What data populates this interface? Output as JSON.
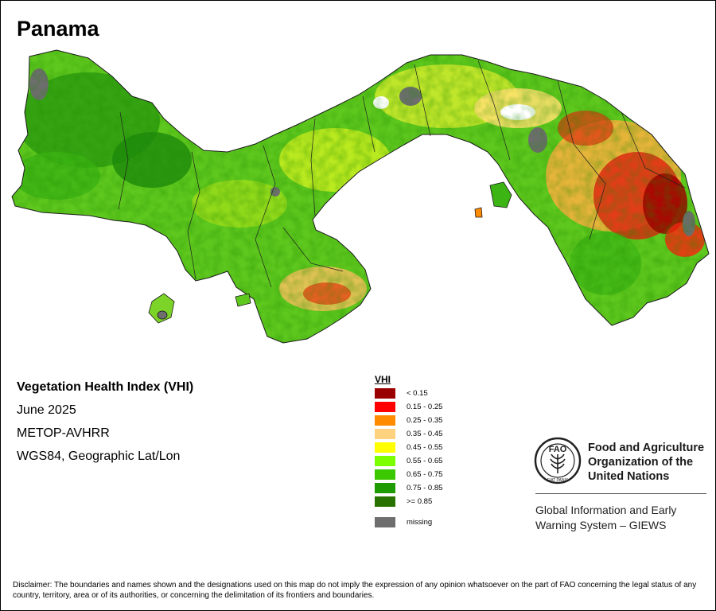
{
  "map": {
    "title": "Panama",
    "colors": {
      "land_base": "#5fc81e",
      "sea": "#ffffff",
      "border": "#202020"
    }
  },
  "info": {
    "index_name": "Vegetation Health Index (VHI)",
    "period": "June 2025",
    "sensor": "METOP-AVHRR",
    "projection": "WGS84, Geographic Lat/Lon"
  },
  "legend": {
    "title": "VHI",
    "items": [
      {
        "label": "< 0.15",
        "color": "#9b0000"
      },
      {
        "label": "0.15 - 0.25",
        "color": "#ff0000"
      },
      {
        "label": "0.25 - 0.35",
        "color": "#ff8c00"
      },
      {
        "label": "0.35 - 0.45",
        "color": "#ffd27f"
      },
      {
        "label": "0.45 - 0.55",
        "color": "#ffff00"
      },
      {
        "label": "0.55 - 0.65",
        "color": "#7dff00"
      },
      {
        "label": "0.65 - 0.75",
        "color": "#3cc800"
      },
      {
        "label": "0.75 - 0.85",
        "color": "#1e9b00"
      },
      {
        "label": ">= 0.85",
        "color": "#287300"
      }
    ],
    "missing": {
      "label": "missing",
      "color": "#6e6e6e"
    }
  },
  "fao": {
    "logo_text": "FAO",
    "motto": "FIAT PANIS",
    "org_line1": "Food and Agriculture",
    "org_line2": "Organization of the",
    "org_line3": "United Nations",
    "system_line1": "Global Information and Early",
    "system_line2": "Warning System – GIEWS"
  },
  "disclaimer": "Disclaimer: The boundaries and names shown and the designations used on this map do not imply the expression of any opinion whatsoever on the part of FAO concerning the legal status of any country, territory, area or of its authorities, or concerning the delimitation of its frontiers and boundaries."
}
